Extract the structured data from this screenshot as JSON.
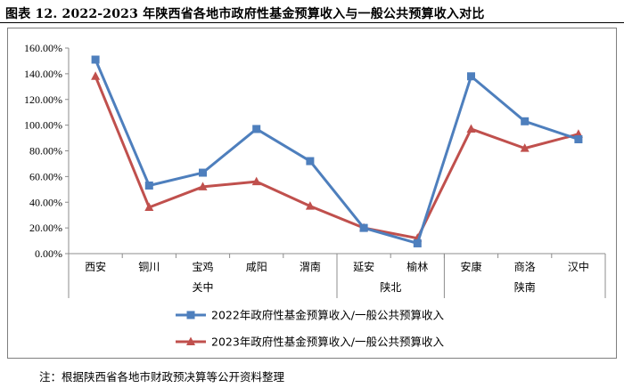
{
  "figure": {
    "title": "图表 12.    2022-2023 年陕西省各地市政府性基金预算收入与一般公共预算收入对比",
    "note": "注：根据陕西省各地市财政预决算等公开资料整理"
  },
  "chart_data": {
    "type": "line",
    "categories": [
      "西安",
      "铜川",
      "宝鸡",
      "咸阳",
      "渭南",
      "延安",
      "榆林",
      "安康",
      "商洛",
      "汉中"
    ],
    "groups": [
      {
        "label": "关中",
        "count": 5
      },
      {
        "label": "陕北",
        "count": 2
      },
      {
        "label": "陕南",
        "count": 3
      }
    ],
    "y_ticks": [
      "0.00%",
      "20.00%",
      "40.00%",
      "60.00%",
      "80.00%",
      "100.00%",
      "120.00%",
      "140.00%",
      "160.00%"
    ],
    "ylim": [
      0,
      160
    ],
    "y_unit": "%",
    "grid": false,
    "legend_position": "bottom",
    "series": [
      {
        "name": "2022年政府性基金预算收入/一般公共预算收入",
        "color": "#4e7fbd",
        "marker": "square",
        "values": [
          151,
          53,
          63,
          97,
          72,
          20,
          8,
          138,
          103,
          89
        ]
      },
      {
        "name": "2023年政府性基金预算收入/一般公共预算收入",
        "color": "#c0504d",
        "marker": "triangle",
        "values": [
          138,
          36,
          52,
          56,
          37,
          20,
          12,
          97,
          82,
          93
        ]
      }
    ]
  }
}
